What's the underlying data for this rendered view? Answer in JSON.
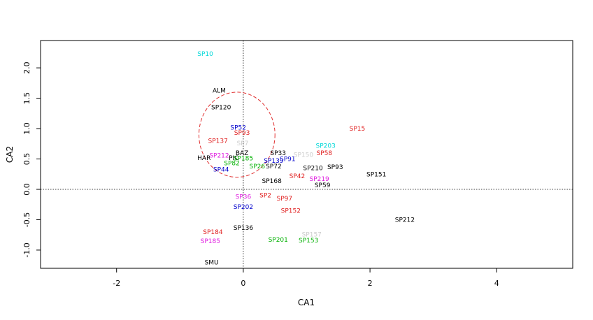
{
  "chart_data": {
    "type": "scatter",
    "xlabel": "CA1",
    "ylabel": "CA2",
    "xlim": [
      -3.2,
      5.2
    ],
    "ylim": [
      -1.3,
      2.45
    ],
    "x_ticks": [
      -2,
      0,
      2,
      4
    ],
    "y_ticks": [
      -1.0,
      -0.5,
      0.0,
      0.5,
      1.0,
      1.5,
      2.0
    ],
    "reference_lines": {
      "x": 0,
      "y": 0,
      "style": "dotted"
    },
    "circle": {
      "cx": -0.1,
      "cy": 0.9,
      "rx": 0.6,
      "ry": 0.7,
      "color": "#e03030",
      "style": "dashed"
    },
    "points": [
      {
        "label": "SP10",
        "x": -0.6,
        "y": 2.23,
        "color": "#00d8d8"
      },
      {
        "label": "ALM",
        "x": -0.38,
        "y": 1.63,
        "color": "#000000"
      },
      {
        "label": "SP120",
        "x": -0.35,
        "y": 1.35,
        "color": "#000000"
      },
      {
        "label": "SP52",
        "x": -0.08,
        "y": 1.02,
        "color": "#0000cc"
      },
      {
        "label": "SP137",
        "x": -0.4,
        "y": 0.8,
        "color": "#e02020"
      },
      {
        "label": "SP93",
        "x": -0.02,
        "y": 0.93,
        "color": "#e02020"
      },
      {
        "label": "SP7",
        "x": -0.01,
        "y": 0.76,
        "color": "#cccccc"
      },
      {
        "label": "BAZ",
        "x": -0.02,
        "y": 0.6,
        "color": "#000000"
      },
      {
        "label": "SP212",
        "x": -0.38,
        "y": 0.56,
        "color": "#e020e0"
      },
      {
        "label": "HAR",
        "x": -0.62,
        "y": 0.52,
        "color": "#000000"
      },
      {
        "label": "PIC",
        "x": -0.15,
        "y": 0.52,
        "color": "#000000"
      },
      {
        "label": "SP185",
        "x": 0.0,
        "y": 0.51,
        "color": "#00b000"
      },
      {
        "label": "SP33",
        "x": 0.55,
        "y": 0.6,
        "color": "#000000"
      },
      {
        "label": "SP150",
        "x": 0.95,
        "y": 0.57,
        "color": "#cccccc"
      },
      {
        "label": "SP58",
        "x": 1.28,
        "y": 0.6,
        "color": "#e02020"
      },
      {
        "label": "SP203",
        "x": 1.3,
        "y": 0.72,
        "color": "#00d8d8"
      },
      {
        "label": "SP91",
        "x": 0.7,
        "y": 0.5,
        "color": "#0000cc"
      },
      {
        "label": "SP139",
        "x": 0.48,
        "y": 0.47,
        "color": "#0000cc"
      },
      {
        "label": "SP72",
        "x": 0.48,
        "y": 0.38,
        "color": "#000000"
      },
      {
        "label": "SP26",
        "x": 0.22,
        "y": 0.38,
        "color": "#00b000"
      },
      {
        "label": "SP210",
        "x": 1.1,
        "y": 0.35,
        "color": "#000000"
      },
      {
        "label": "SP93",
        "x": 1.45,
        "y": 0.37,
        "color": "#000000"
      },
      {
        "label": "SP15",
        "x": 1.8,
        "y": 1.0,
        "color": "#e02020"
      },
      {
        "label": "SP151",
        "x": 2.1,
        "y": 0.25,
        "color": "#000000"
      },
      {
        "label": "SP42",
        "x": 0.85,
        "y": 0.22,
        "color": "#e02020"
      },
      {
        "label": "SP219",
        "x": 1.2,
        "y": 0.17,
        "color": "#e020e0"
      },
      {
        "label": "SP59",
        "x": 1.25,
        "y": 0.07,
        "color": "#000000"
      },
      {
        "label": "SP168",
        "x": 0.45,
        "y": 0.14,
        "color": "#000000"
      },
      {
        "label": "SP44",
        "x": -0.35,
        "y": 0.33,
        "color": "#0000cc"
      },
      {
        "label": "SP82",
        "x": -0.18,
        "y": 0.43,
        "color": "#00b000"
      },
      {
        "label": "SP2",
        "x": 0.35,
        "y": -0.1,
        "color": "#e02020"
      },
      {
        "label": "SP97",
        "x": 0.65,
        "y": -0.15,
        "color": "#e02020"
      },
      {
        "label": "SP152",
        "x": 0.75,
        "y": -0.35,
        "color": "#e02020"
      },
      {
        "label": "SP36",
        "x": 0.0,
        "y": -0.12,
        "color": "#e020e0"
      },
      {
        "label": "SP202",
        "x": 0.0,
        "y": -0.29,
        "color": "#0000cc"
      },
      {
        "label": "SP136",
        "x": 0.0,
        "y": -0.63,
        "color": "#000000"
      },
      {
        "label": "SP201",
        "x": 0.55,
        "y": -0.83,
        "color": "#00b000"
      },
      {
        "label": "SP153",
        "x": 1.03,
        "y": -0.84,
        "color": "#00b000"
      },
      {
        "label": "SP157",
        "x": 1.08,
        "y": -0.74,
        "color": "#cccccc"
      },
      {
        "label": "SP212",
        "x": 2.55,
        "y": -0.5,
        "color": "#000000"
      },
      {
        "label": "SP184",
        "x": -0.48,
        "y": -0.7,
        "color": "#e02020"
      },
      {
        "label": "SP185",
        "x": -0.52,
        "y": -0.85,
        "color": "#e020e0"
      },
      {
        "label": "SMU",
        "x": -0.5,
        "y": -1.2,
        "color": "#000000"
      }
    ]
  }
}
